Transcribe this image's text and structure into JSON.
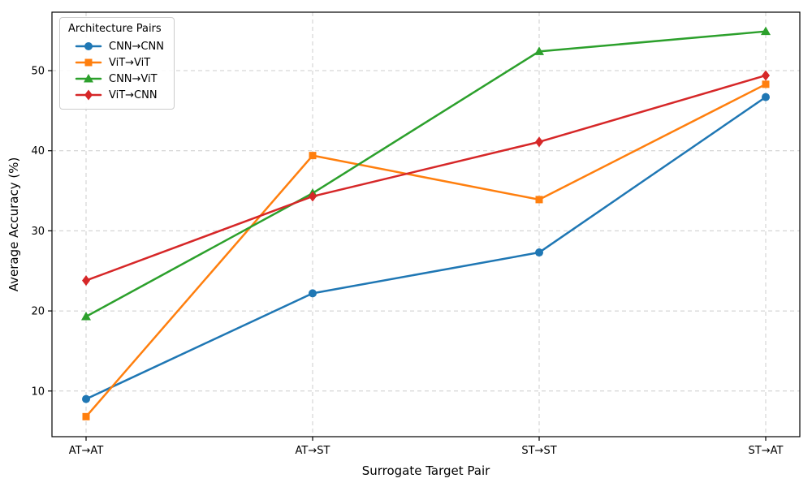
{
  "chart_data": {
    "type": "line",
    "title": "",
    "xlabel": "Surrogate Target Pair",
    "ylabel": "Average Accuracy (%)",
    "categories": [
      "AT→AT",
      "AT→ST",
      "ST→ST",
      "ST→AT"
    ],
    "yticks": [
      10,
      20,
      30,
      40,
      50
    ],
    "ylim": [
      4.3,
      57.3
    ],
    "grid": "dashed-both-axes",
    "grid_color": "#cccccc",
    "axis_color": "#000000",
    "legend": {
      "title": "Architecture Pairs",
      "position": "upper-left"
    },
    "series": [
      {
        "name": "CNN→CNN",
        "color": "#1f77b4",
        "marker": "circle",
        "values": [
          9.0,
          22.2,
          27.3,
          46.7
        ]
      },
      {
        "name": "ViT→ViT",
        "color": "#ff7f0e",
        "marker": "square",
        "values": [
          6.8,
          39.4,
          33.9,
          48.3
        ]
      },
      {
        "name": "CNN→ViT",
        "color": "#2ca02c",
        "marker": "triangle",
        "values": [
          19.3,
          34.7,
          52.4,
          54.9
        ]
      },
      {
        "name": "ViT→CNN",
        "color": "#d62728",
        "marker": "diamond",
        "values": [
          23.8,
          34.3,
          41.1,
          49.4
        ]
      }
    ]
  }
}
